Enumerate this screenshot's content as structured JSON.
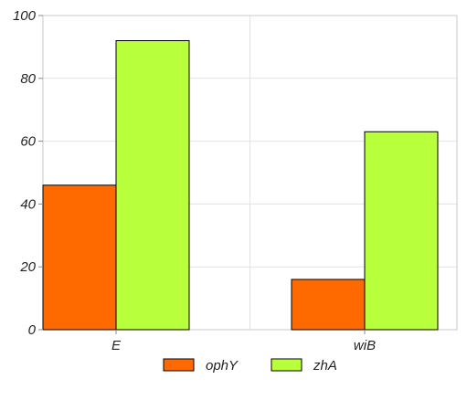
{
  "chart_data": {
    "type": "bar",
    "categories": [
      "E",
      "wiB"
    ],
    "series": [
      {
        "name": "ophY",
        "values": [
          46,
          16
        ],
        "color": "#ff6a00"
      },
      {
        "name": "zhA",
        "values": [
          92,
          63
        ],
        "color": "#b8ff3c"
      }
    ],
    "title": "",
    "xlabel": "",
    "ylabel": "",
    "ylim": [
      0,
      100
    ],
    "yticks": [
      0,
      20,
      40,
      60,
      80,
      100
    ],
    "grid": true,
    "legend_position": "bottom"
  }
}
